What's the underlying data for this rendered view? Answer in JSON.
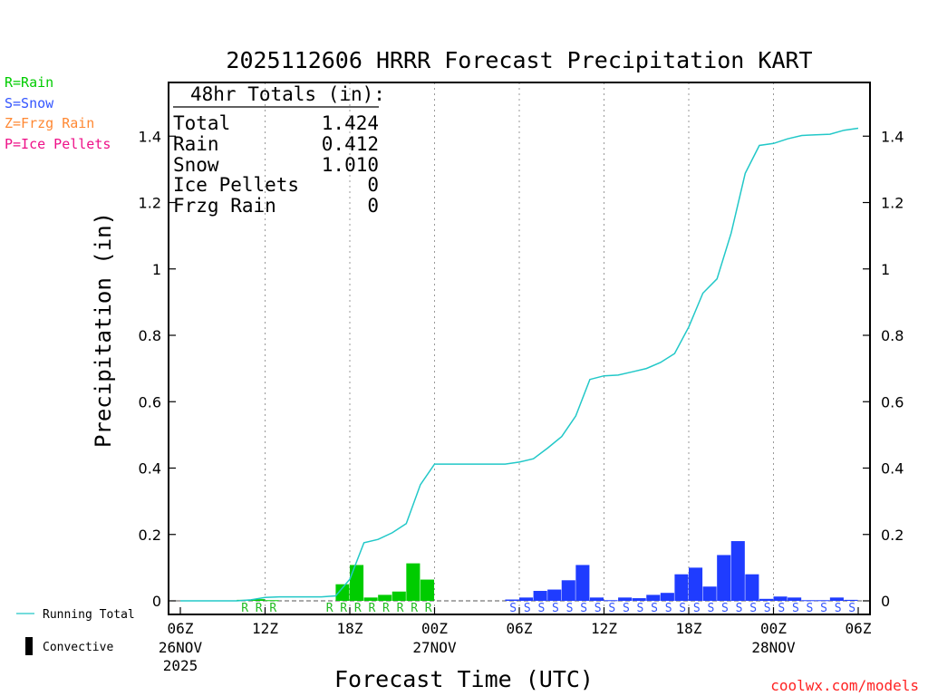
{
  "title": "2025112606 HRRR Forecast Precipitation KART",
  "ylabel": "Precipitation (in)",
  "xlabel": "Forecast Time (UTC)",
  "credit": "coolwx.com/models",
  "type_legend": [
    {
      "label": "R=Rain",
      "color": "#00cc00"
    },
    {
      "label": "S=Snow",
      "color": "#3355ff"
    },
    {
      "label": "Z=Frzg Rain",
      "color": "#ff8833"
    },
    {
      "label": "P=Ice Pellets",
      "color": "#ee1188"
    }
  ],
  "bottom_legend": {
    "running_total": "Running Total",
    "convective": "Convective"
  },
  "totals": {
    "header": "48hr Totals (in):",
    "rows": [
      {
        "label": "Total",
        "value": "1.424"
      },
      {
        "label": "Rain",
        "value": "0.412"
      },
      {
        "label": "Snow",
        "value": "1.010"
      },
      {
        "label": "Ice Pellets",
        "value": "0"
      },
      {
        "label": "Frzg Rain",
        "value": "0"
      }
    ]
  },
  "colors": {
    "rain": "#00cc00",
    "snow": "#1f3cff",
    "running_total": "#22c8c8"
  },
  "chart_data": {
    "type": "bar",
    "x_range": [
      0,
      48
    ],
    "ylim": [
      0,
      1.55
    ],
    "y_ticks": [
      0,
      0.2,
      0.4,
      0.6,
      0.8,
      1,
      1.2,
      1.4
    ],
    "x_ticks": [
      {
        "hour": 0,
        "label": "06Z",
        "date": "26NOV",
        "year": "2025"
      },
      {
        "hour": 6,
        "label": "12Z"
      },
      {
        "hour": 12,
        "label": "18Z"
      },
      {
        "hour": 18,
        "label": "00Z",
        "date": "27NOV"
      },
      {
        "hour": 24,
        "label": "06Z"
      },
      {
        "hour": 30,
        "label": "12Z"
      },
      {
        "hour": 36,
        "label": "18Z"
      },
      {
        "hour": 42,
        "label": "00Z",
        "date": "28NOV"
      },
      {
        "hour": 48,
        "label": "06Z"
      }
    ],
    "hourly_precip": [
      {
        "hour": 1,
        "value": 0,
        "type": ""
      },
      {
        "hour": 2,
        "value": 0,
        "type": ""
      },
      {
        "hour": 3,
        "value": 0,
        "type": ""
      },
      {
        "hour": 4,
        "value": 0,
        "type": ""
      },
      {
        "hour": 5,
        "value": 0.003,
        "type": "R"
      },
      {
        "hour": 6,
        "value": 0.005,
        "type": "R"
      },
      {
        "hour": 7,
        "value": 0.002,
        "type": "R"
      },
      {
        "hour": 8,
        "value": 0,
        "type": ""
      },
      {
        "hour": 9,
        "value": 0,
        "type": ""
      },
      {
        "hour": 10,
        "value": 0,
        "type": ""
      },
      {
        "hour": 11,
        "value": 0,
        "type": "R"
      },
      {
        "hour": 12,
        "value": 0.05,
        "type": "R"
      },
      {
        "hour": 13,
        "value": 0.108,
        "type": "R"
      },
      {
        "hour": 14,
        "value": 0.01,
        "type": "R"
      },
      {
        "hour": 15,
        "value": 0.018,
        "type": "R"
      },
      {
        "hour": 16,
        "value": 0.028,
        "type": "R"
      },
      {
        "hour": 17,
        "value": 0.113,
        "type": "R"
      },
      {
        "hour": 18,
        "value": 0.064,
        "type": "R"
      },
      {
        "hour": 19,
        "value": 0,
        "type": ""
      },
      {
        "hour": 20,
        "value": 0,
        "type": ""
      },
      {
        "hour": 21,
        "value": 0,
        "type": ""
      },
      {
        "hour": 22,
        "value": 0,
        "type": ""
      },
      {
        "hour": 23,
        "value": 0,
        "type": ""
      },
      {
        "hour": 24,
        "value": 0.004,
        "type": "S"
      },
      {
        "hour": 25,
        "value": 0.01,
        "type": "S"
      },
      {
        "hour": 26,
        "value": 0.03,
        "type": "S"
      },
      {
        "hour": 27,
        "value": 0.034,
        "type": "S"
      },
      {
        "hour": 28,
        "value": 0.062,
        "type": "S"
      },
      {
        "hour": 29,
        "value": 0.108,
        "type": "S"
      },
      {
        "hour": 30,
        "value": 0.01,
        "type": "S"
      },
      {
        "hour": 31,
        "value": 0.002,
        "type": "S"
      },
      {
        "hour": 32,
        "value": 0.01,
        "type": "S"
      },
      {
        "hour": 33,
        "value": 0.008,
        "type": "S"
      },
      {
        "hour": 34,
        "value": 0.018,
        "type": "S"
      },
      {
        "hour": 35,
        "value": 0.024,
        "type": "S"
      },
      {
        "hour": 36,
        "value": 0.08,
        "type": "S"
      },
      {
        "hour": 37,
        "value": 0.1,
        "type": "S"
      },
      {
        "hour": 38,
        "value": 0.043,
        "type": "S"
      },
      {
        "hour": 39,
        "value": 0.138,
        "type": "S"
      },
      {
        "hour": 40,
        "value": 0.18,
        "type": "S"
      },
      {
        "hour": 41,
        "value": 0.08,
        "type": "S"
      },
      {
        "hour": 42,
        "value": 0.006,
        "type": "S"
      },
      {
        "hour": 43,
        "value": 0.013,
        "type": "S"
      },
      {
        "hour": 44,
        "value": 0.01,
        "type": "S"
      },
      {
        "hour": 45,
        "value": 0.002,
        "type": "S"
      },
      {
        "hour": 46,
        "value": 0.002,
        "type": "S"
      },
      {
        "hour": 47,
        "value": 0.01,
        "type": "S"
      },
      {
        "hour": 48,
        "value": 0.003,
        "type": "S"
      }
    ],
    "running_total": [
      [
        0,
        0
      ],
      [
        1,
        0
      ],
      [
        2,
        0
      ],
      [
        3,
        0
      ],
      [
        4,
        0
      ],
      [
        5,
        0.003
      ],
      [
        6,
        0.01
      ],
      [
        7,
        0.012
      ],
      [
        8,
        0.012
      ],
      [
        9,
        0.012
      ],
      [
        10,
        0.012
      ],
      [
        11,
        0.015
      ],
      [
        12,
        0.065
      ],
      [
        13,
        0.175
      ],
      [
        14,
        0.185
      ],
      [
        15,
        0.205
      ],
      [
        16,
        0.233
      ],
      [
        17,
        0.35
      ],
      [
        18,
        0.412
      ],
      [
        19,
        0.412
      ],
      [
        20,
        0.412
      ],
      [
        21,
        0.412
      ],
      [
        22,
        0.412
      ],
      [
        23,
        0.412
      ],
      [
        24,
        0.418
      ],
      [
        25,
        0.428
      ],
      [
        26,
        0.46
      ],
      [
        27,
        0.495
      ],
      [
        28,
        0.557
      ],
      [
        29,
        0.667
      ],
      [
        30,
        0.678
      ],
      [
        31,
        0.68
      ],
      [
        32,
        0.69
      ],
      [
        33,
        0.7
      ],
      [
        34,
        0.718
      ],
      [
        35,
        0.745
      ],
      [
        36,
        0.825
      ],
      [
        37,
        0.927
      ],
      [
        38,
        0.97
      ],
      [
        39,
        1.108
      ],
      [
        40,
        1.288
      ],
      [
        41,
        1.372
      ],
      [
        42,
        1.378
      ],
      [
        43,
        1.392
      ],
      [
        44,
        1.402
      ],
      [
        45,
        1.404
      ],
      [
        46,
        1.406
      ],
      [
        47,
        1.418
      ],
      [
        48,
        1.424
      ]
    ]
  }
}
